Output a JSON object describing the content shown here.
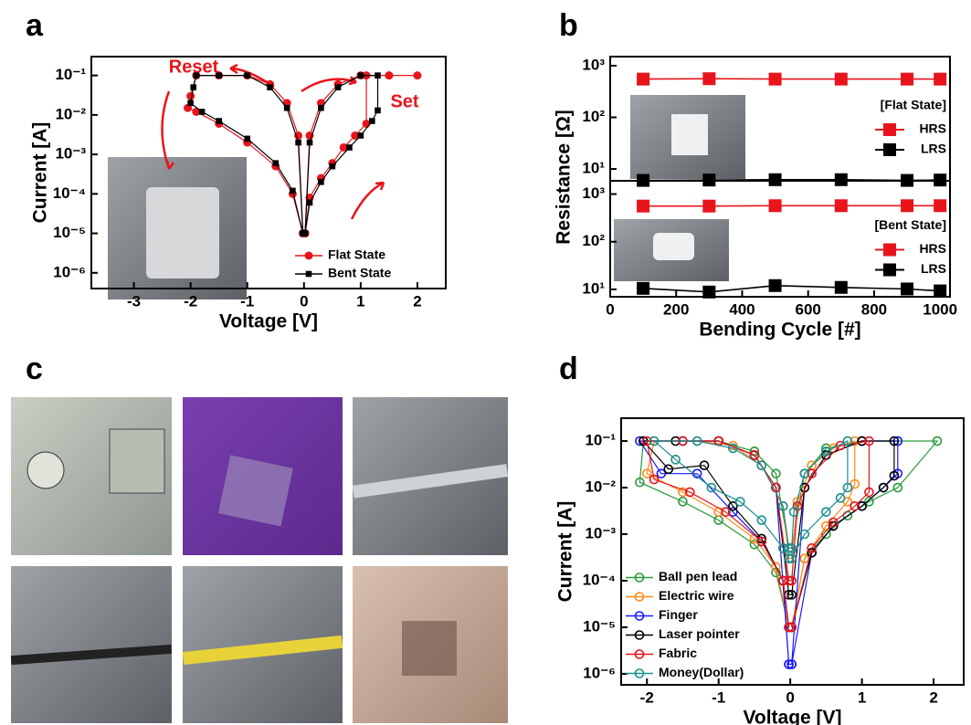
{
  "chart_data": [
    {
      "type": "line",
      "panel_label": "a",
      "xlabel": "Voltage [V]",
      "ylabel": "Current [A]",
      "yscale": "log",
      "xlim": [
        -3.75,
        2.5
      ],
      "ylim": [
        4e-07,
        0.3
      ],
      "xticks": [
        -3,
        -2,
        -1,
        0,
        1,
        2
      ],
      "yticks": [
        {
          "value": 1e-06,
          "label": "10⁻⁶"
        },
        {
          "value": 1e-05,
          "label": "10⁻⁵"
        },
        {
          "value": 0.0001,
          "label": "10⁻⁴"
        },
        {
          "value": 0.001,
          "label": "10⁻³"
        },
        {
          "value": 0.01,
          "label": "10⁻²"
        },
        {
          "value": 0.1,
          "label": "10⁻¹"
        }
      ],
      "legend": "lower right",
      "annotations": [
        {
          "text": "Reset",
          "color": "#e8141c"
        },
        {
          "text": "Set",
          "color": "#e8141c"
        }
      ],
      "series": [
        {
          "name": "Flat State",
          "color": "#e8141c",
          "marker": "circle",
          "x": [
            0.02,
            0.1,
            0.3,
            0.5,
            0.7,
            0.9,
            1.1,
            1.1,
            1.5,
            2.0,
            1.5,
            1.0,
            0.6,
            0.3,
            0.1,
            0.02,
            -0.02,
            -0.1,
            -0.3,
            -0.6,
            -1.0,
            -1.5,
            -1.9,
            -2.0,
            -2.05,
            -1.9,
            -1.5,
            -1.0,
            -0.5,
            -0.2,
            -0.02
          ],
          "values": [
            1e-05,
            8e-05,
            0.00025,
            0.0006,
            0.0015,
            0.003,
            0.006,
            0.1,
            0.1,
            0.1,
            0.1,
            0.1,
            0.06,
            0.02,
            0.003,
            1e-05,
            1e-05,
            0.003,
            0.02,
            0.06,
            0.1,
            0.1,
            0.1,
            0.03,
            0.015,
            0.012,
            0.006,
            0.002,
            0.0005,
            0.0001,
            1e-05
          ]
        },
        {
          "name": "Bent State",
          "color": "#000000",
          "marker": "square",
          "x": [
            0.02,
            0.1,
            0.3,
            0.5,
            0.8,
            1.0,
            1.2,
            1.3,
            1.3,
            1.0,
            0.6,
            0.3,
            0.1,
            0.02,
            -0.02,
            -0.1,
            -0.3,
            -0.6,
            -1.0,
            -1.5,
            -1.9,
            -1.95,
            -2.0,
            -1.8,
            -1.5,
            -1.0,
            -0.5,
            -0.2,
            -0.02
          ],
          "values": [
            1e-05,
            6e-05,
            0.0002,
            0.0005,
            0.0015,
            0.003,
            0.007,
            0.013,
            0.1,
            0.1,
            0.05,
            0.015,
            0.002,
            1e-05,
            1e-05,
            0.002,
            0.015,
            0.05,
            0.1,
            0.1,
            0.1,
            0.05,
            0.02,
            0.012,
            0.007,
            0.0025,
            0.0006,
            0.00012,
            1e-05
          ]
        }
      ]
    },
    {
      "type": "line",
      "panel_label": "b",
      "ylabel": "Resistance [Ω]",
      "yscale": "log",
      "xlim": [
        0,
        1030
      ],
      "ylim": [
        5.9,
        1500
      ],
      "yticks": [
        {
          "value": 10,
          "label": "10¹"
        },
        {
          "value": 100,
          "label": "10²"
        },
        {
          "value": 1000,
          "label": "10³"
        }
      ],
      "legend": "center right",
      "legend_title": "[Flat State]",
      "x": [
        100,
        300,
        500,
        700,
        900,
        1000
      ],
      "series": [
        {
          "name": "HRS",
          "color": "#e8141c",
          "marker": "square",
          "values": [
            550,
            560,
            550,
            550,
            550,
            550
          ]
        },
        {
          "name": "LRS",
          "color": "#000000",
          "marker": "square",
          "values": [
            6,
            6.1,
            6.2,
            6.2,
            6,
            6.1
          ]
        }
      ]
    },
    {
      "type": "line",
      "xlabel": "Bending Cycle [#]",
      "yscale": "log",
      "xlim": [
        0,
        1030
      ],
      "ylim": [
        7,
        1900
      ],
      "xticks": [
        0,
        200,
        400,
        600,
        800,
        1000
      ],
      "yticks": [
        {
          "value": 10,
          "label": "10¹"
        },
        {
          "value": 100,
          "label": "10²"
        },
        {
          "value": 1000,
          "label": "10³"
        }
      ],
      "legend": "center right",
      "legend_title": "[Bent State]",
      "x": [
        100,
        300,
        500,
        700,
        900,
        1000
      ],
      "series": [
        {
          "name": "HRS",
          "color": "#e8141c",
          "marker": "square",
          "values": [
            560,
            560,
            570,
            570,
            570,
            570
          ]
        },
        {
          "name": "LRS",
          "color": "#000000",
          "marker": "square",
          "values": [
            10.5,
            8.8,
            12,
            11,
            10.2,
            9.3
          ]
        }
      ]
    },
    {
      "type": "line",
      "panel_label": "d",
      "xlabel": "Voltage [V]",
      "ylabel": "Current [A]",
      "yscale": "log",
      "open_markers": true,
      "xlim": [
        -2.36,
        2.42
      ],
      "ylim": [
        5.8e-07,
        0.31
      ],
      "xticks": [
        -2,
        -1,
        0,
        1,
        2
      ],
      "yticks": [
        {
          "value": 1e-06,
          "label": "10⁻⁶"
        },
        {
          "value": 1e-05,
          "label": "10⁻⁵"
        },
        {
          "value": 0.0001,
          "label": "10⁻⁴"
        },
        {
          "value": 0.001,
          "label": "10⁻³"
        },
        {
          "value": 0.01,
          "label": "10⁻²"
        },
        {
          "value": 0.1,
          "label": "10⁻¹"
        }
      ],
      "legend": "lower left",
      "series": [
        {
          "name": "Ball pen lead",
          "color": "#2a9a3c",
          "marker": "circle",
          "x": [
            0.02,
            0.2,
            0.5,
            0.8,
            1.1,
            1.5,
            2.05,
            1.5,
            1.0,
            0.5,
            0.2,
            0.02,
            -0.02,
            -0.2,
            -0.5,
            -1.0,
            -1.5,
            -2.05,
            -2.1,
            -1.5,
            -1.0,
            -0.5,
            -0.2,
            -0.02
          ],
          "values": [
            1e-05,
            0.0003,
            0.001,
            0.0025,
            0.005,
            0.01,
            0.1,
            0.1,
            0.1,
            0.07,
            0.02,
            0.0005,
            0.0005,
            0.02,
            0.06,
            0.1,
            0.1,
            0.1,
            0.013,
            0.005,
            0.002,
            0.0006,
            0.00015,
            1e-05
          ]
        },
        {
          "name": "Electric wire",
          "color": "#ff8c1a",
          "marker": "circle",
          "x": [
            0.02,
            0.2,
            0.5,
            0.8,
            0.9,
            0.9,
            0.6,
            0.3,
            0.1,
            0.02,
            -0.02,
            -0.1,
            -0.4,
            -0.8,
            -1.3,
            -1.9,
            -2.0,
            -1.5,
            -1.0,
            -0.5,
            -0.2,
            -0.02
          ],
          "values": [
            1e-05,
            0.0003,
            0.0015,
            0.005,
            0.012,
            0.1,
            0.07,
            0.03,
            0.005,
            0.0003,
            0.0003,
            0.004,
            0.03,
            0.08,
            0.1,
            0.1,
            0.02,
            0.008,
            0.003,
            0.0008,
            0.0002,
            1e-05
          ]
        },
        {
          "name": "Finger",
          "color": "#1a1aff",
          "marker": "circle",
          "x": [
            0.02,
            0.3,
            0.6,
            1.0,
            1.3,
            1.5,
            1.5,
            1.0,
            0.5,
            0.2,
            0.02,
            -0.02,
            -0.2,
            -0.5,
            -1.0,
            -1.5,
            -2.1,
            -1.8,
            -1.3,
            -0.8,
            -0.4,
            -0.1,
            -0.02
          ],
          "values": [
            1.6e-06,
            0.0004,
            0.0015,
            0.004,
            0.01,
            0.02,
            0.1,
            0.1,
            0.05,
            0.01,
            1.6e-06,
            1.6e-06,
            0.01,
            0.05,
            0.1,
            0.1,
            0.1,
            0.02,
            0.02,
            0.003,
            0.0007,
            0.0001,
            1.6e-06
          ]
        },
        {
          "name": "Laser pointer",
          "color": "#000000",
          "marker": "circle",
          "x": [
            0.02,
            0.3,
            0.6,
            1.0,
            1.3,
            1.45,
            1.45,
            1.0,
            0.5,
            0.2,
            0.02,
            -0.02,
            -0.2,
            -0.5,
            -1.0,
            -1.6,
            -2.05,
            -1.7,
            -1.2,
            -0.8,
            -0.4,
            -0.1,
            -0.02
          ],
          "values": [
            1e-05,
            0.0004,
            0.0015,
            0.004,
            0.01,
            0.018,
            0.1,
            0.1,
            0.05,
            0.01,
            5e-05,
            5e-05,
            0.01,
            0.05,
            0.1,
            0.1,
            0.1,
            0.025,
            0.03,
            0.004,
            0.0008,
            0.0001,
            1e-05
          ]
        },
        {
          "name": "Fabric",
          "color": "#e8141c",
          "marker": "circle",
          "x": [
            0.02,
            0.3,
            0.6,
            0.9,
            1.1,
            1.1,
            0.7,
            0.3,
            0.1,
            0.02,
            -0.02,
            -0.2,
            -0.5,
            -1.0,
            -1.5,
            -2.0,
            -1.9,
            -1.4,
            -0.9,
            -0.4,
            -0.1,
            -0.02
          ],
          "values": [
            1e-05,
            0.0005,
            0.0018,
            0.004,
            0.008,
            0.1,
            0.08,
            0.02,
            0.004,
            0.0001,
            0.0001,
            0.01,
            0.05,
            0.1,
            0.1,
            0.1,
            0.015,
            0.008,
            0.003,
            0.0007,
            0.0001,
            1e-05
          ]
        },
        {
          "name": "Money(Dollar)",
          "color": "#1a8f8f",
          "marker": "circle",
          "x": [
            0.02,
            0.2,
            0.5,
            0.7,
            0.8,
            0.8,
            0.5,
            0.2,
            0.05,
            0.02,
            -0.02,
            -0.1,
            -0.4,
            -0.8,
            -1.3,
            -1.9,
            -1.6,
            -1.1,
            -0.7,
            -0.4,
            -0.1,
            -0.02
          ],
          "values": [
            0.0003,
            0.001,
            0.003,
            0.006,
            0.01,
            0.1,
            0.06,
            0.02,
            0.003,
            0.0005,
            0.0005,
            0.004,
            0.03,
            0.07,
            0.1,
            0.1,
            0.04,
            0.01,
            0.005,
            0.002,
            0.0005,
            0.0003
          ]
        }
      ]
    }
  ],
  "photo_panel": {
    "label": "c"
  }
}
